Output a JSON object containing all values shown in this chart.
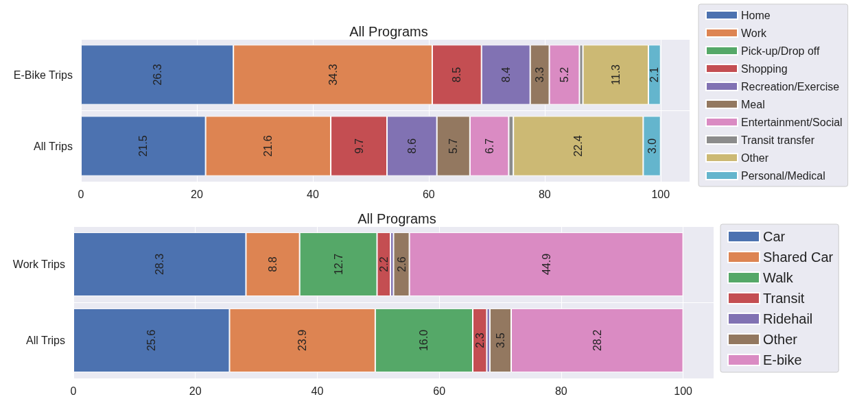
{
  "chart_data": [
    {
      "type": "bar",
      "orientation": "horizontal",
      "stacked": true,
      "title": "All Programs",
      "categories": [
        "E-Bike Trips",
        "All Trips"
      ],
      "xlim": [
        0,
        105
      ],
      "xticks": [
        0,
        20,
        40,
        60,
        80,
        100
      ],
      "grid": true,
      "legend": "right",
      "series": [
        {
          "name": "Home",
          "color": "#4c72b0",
          "values": [
            26.3,
            21.5
          ],
          "value_labels": [
            "26.3",
            "21.5"
          ]
        },
        {
          "name": "Work",
          "color": "#dd8452",
          "values": [
            34.3,
            21.6
          ],
          "value_labels": [
            "34.3",
            "21.6"
          ]
        },
        {
          "name": "Pick-up/Drop off",
          "color": "#55a868",
          "values": [
            0,
            0
          ],
          "value_labels": [
            null,
            null
          ]
        },
        {
          "name": "Shopping",
          "color": "#c44e52",
          "values": [
            8.5,
            9.7
          ],
          "value_labels": [
            "8.5",
            "9.7"
          ]
        },
        {
          "name": "Recreation/Exercise",
          "color": "#8172b3",
          "values": [
            8.4,
            8.6
          ],
          "value_labels": [
            "8.4",
            "8.6"
          ]
        },
        {
          "name": "Meal",
          "color": "#937860",
          "values": [
            3.3,
            5.7
          ],
          "value_labels": [
            "3.3",
            "5.7"
          ]
        },
        {
          "name": "Entertainment/Social",
          "color": "#da8bc3",
          "values": [
            5.2,
            6.7
          ],
          "value_labels": [
            "5.2",
            "6.7"
          ]
        },
        {
          "name": "Transit transfer",
          "color": "#8c8c8c",
          "values": [
            0.6,
            0.8
          ],
          "value_labels": [
            null,
            null
          ]
        },
        {
          "name": "Other",
          "color": "#ccb974",
          "values": [
            11.3,
            22.4
          ],
          "value_labels": [
            "11.3",
            "22.4"
          ]
        },
        {
          "name": "Personal/Medical",
          "color": "#64b5cd",
          "values": [
            2.1,
            3.0
          ],
          "value_labels": [
            "2.1",
            "3.0"
          ]
        }
      ]
    },
    {
      "type": "bar",
      "orientation": "horizontal",
      "stacked": true,
      "title": "All Programs",
      "categories": [
        "Work Trips",
        "All Trips"
      ],
      "xlim": [
        0,
        105
      ],
      "xticks": [
        0,
        20,
        40,
        60,
        80,
        100
      ],
      "grid": true,
      "legend": "right",
      "series": [
        {
          "name": "Car",
          "color": "#4c72b0",
          "values": [
            28.3,
            25.6
          ],
          "value_labels": [
            "28.3",
            "25.6"
          ]
        },
        {
          "name": "Shared Car",
          "color": "#dd8452",
          "values": [
            8.8,
            23.9
          ],
          "value_labels": [
            "8.8",
            "23.9"
          ]
        },
        {
          "name": "Walk",
          "color": "#55a868",
          "values": [
            12.7,
            16.0
          ],
          "value_labels": [
            "12.7",
            "16.0"
          ]
        },
        {
          "name": "Transit",
          "color": "#c44e52",
          "values": [
            2.2,
            2.3
          ],
          "value_labels": [
            "2.2",
            "2.3"
          ]
        },
        {
          "name": "Ridehail",
          "color": "#8172b3",
          "values": [
            0.5,
            0.5
          ],
          "value_labels": [
            null,
            null
          ]
        },
        {
          "name": "Other",
          "color": "#937860",
          "values": [
            2.6,
            3.5
          ],
          "value_labels": [
            "2.6",
            "3.5"
          ]
        },
        {
          "name": "E-bike",
          "color": "#da8bc3",
          "values": [
            44.9,
            28.2
          ],
          "value_labels": [
            "44.9",
            "28.2"
          ]
        }
      ]
    }
  ]
}
